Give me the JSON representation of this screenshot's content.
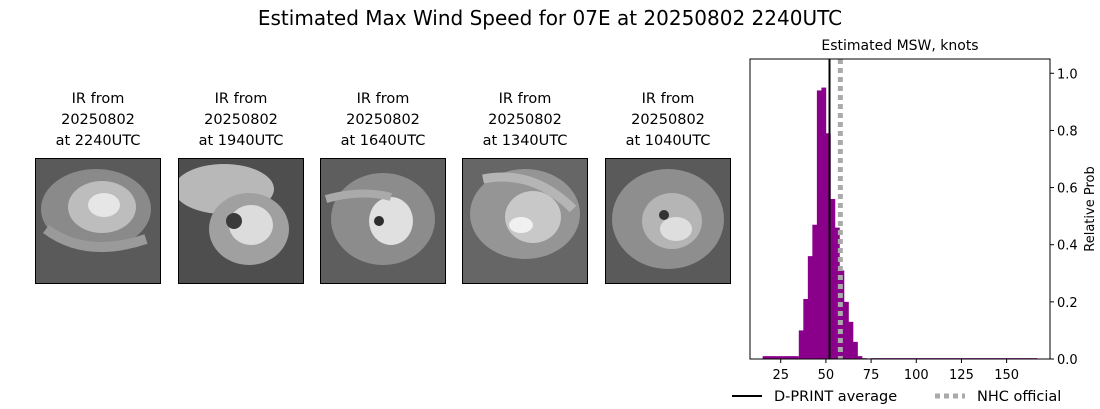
{
  "page": {
    "title": "Estimated Max Wind Speed for 07E at 20250802 2240UTC"
  },
  "thumbnails": [
    {
      "line1": "IR from",
      "line2": "20250802",
      "line3": "at 2240UTC"
    },
    {
      "line1": "IR from",
      "line2": "20250802",
      "line3": "at 1940UTC"
    },
    {
      "line1": "IR from",
      "line2": "20250802",
      "line3": "at 1640UTC"
    },
    {
      "line1": "IR from",
      "line2": "20250802",
      "line3": "at 1340UTC"
    },
    {
      "line1": "IR from",
      "line2": "20250802",
      "line3": "at 1040UTC"
    }
  ],
  "chart_data": {
    "type": "bar",
    "title": "Estimated MSW, knots",
    "xlabel": "",
    "ylabel": "Relative Prob",
    "xlim": [
      8,
      174
    ],
    "ylim": [
      0,
      1.05
    ],
    "xticks": [
      25,
      50,
      75,
      100,
      125,
      150
    ],
    "yticks": [
      "0.0",
      "0.2",
      "0.4",
      "0.6",
      "0.8",
      "1.0"
    ],
    "yaxis_side": "right",
    "bar_color": "#8b008b",
    "bin_width": 2.5,
    "bins": [
      {
        "x0": 15,
        "value": 0.01
      },
      {
        "x0": 35,
        "value": 0.1
      },
      {
        "x0": 37.5,
        "value": 0.21
      },
      {
        "x0": 40,
        "value": 0.36
      },
      {
        "x0": 42.5,
        "value": 0.47
      },
      {
        "x0": 45,
        "value": 0.94
      },
      {
        "x0": 47.5,
        "value": 0.95
      },
      {
        "x0": 50,
        "value": 0.79
      },
      {
        "x0": 52.5,
        "value": 0.56
      },
      {
        "x0": 55,
        "value": 0.46
      },
      {
        "x0": 57.5,
        "value": 0.31
      },
      {
        "x0": 60,
        "value": 0.2
      },
      {
        "x0": 62.5,
        "value": 0.13
      },
      {
        "x0": 65,
        "value": 0.06
      },
      {
        "x0": 67.5,
        "value": 0.01
      },
      {
        "x0": 70,
        "value": 0.003
      },
      {
        "x0": 72.5,
        "value": 0.002
      }
    ],
    "tail": {
      "x0": 75,
      "x1": 167,
      "value": 0.003
    },
    "left_tail": {
      "x0": 17.5,
      "x1": 35,
      "value": 0.01
    },
    "lines": [
      {
        "name": "D-PRINT average",
        "x": 52,
        "color": "#000000",
        "style": "solid"
      },
      {
        "name": "NHC official",
        "x": 58,
        "color": "#aaaaaa",
        "style": "dotted"
      }
    ],
    "legend": "bottom"
  }
}
